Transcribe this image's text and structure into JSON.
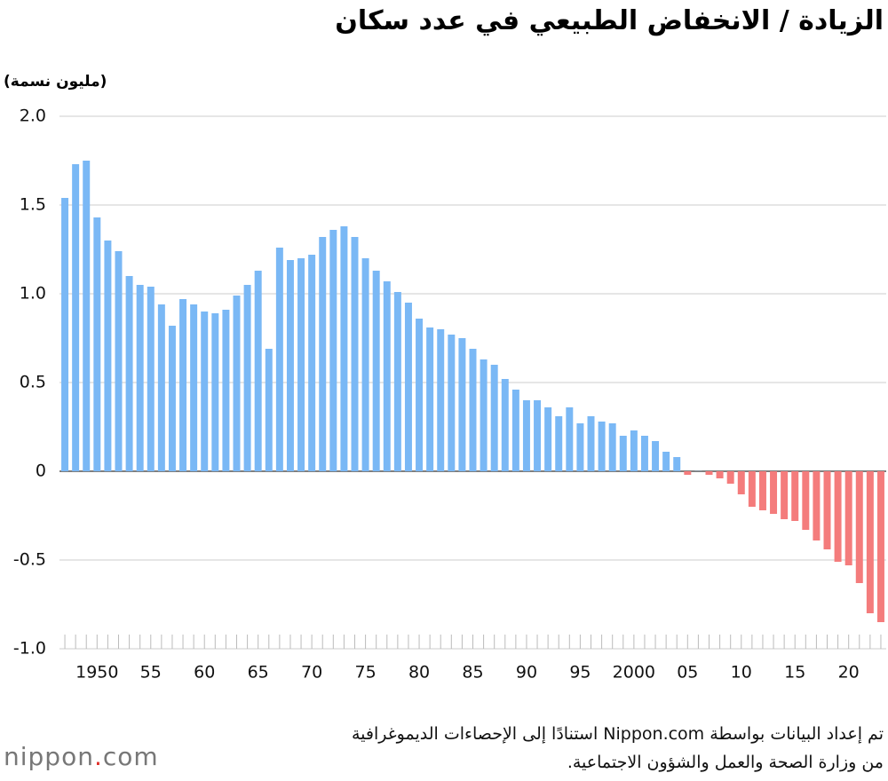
{
  "chart_data": {
    "type": "bar",
    "title": "الزيادة / الانخفاض الطبيعي في عدد سكان",
    "y_axis_label": "(مليون نسمة)",
    "source": [
      "تم إعداد البيانات بواسطة Nippon.com استنادًا إلى الإحصاءات الديموغرافية",
      "من وزارة الصحة والعمل والشؤون الاجتماعية."
    ],
    "logo": {
      "name": "nippon",
      "dot": ".",
      "suffix": "com"
    },
    "categories": [
      null,
      null,
      null,
      "1950",
      null,
      null,
      null,
      null,
      "55",
      null,
      null,
      null,
      null,
      "60",
      null,
      null,
      null,
      null,
      "65",
      null,
      null,
      null,
      null,
      "70",
      null,
      null,
      null,
      null,
      "75",
      null,
      null,
      null,
      null,
      "80",
      null,
      null,
      null,
      null,
      "85",
      null,
      null,
      null,
      null,
      "90",
      null,
      null,
      null,
      null,
      "95",
      null,
      null,
      null,
      null,
      "2000",
      null,
      null,
      null,
      null,
      "05",
      null,
      null,
      null,
      null,
      "10",
      null,
      null,
      null,
      null,
      "15",
      null,
      null,
      null,
      null,
      "20",
      null,
      null,
      null
    ],
    "values": [
      1.54,
      1.73,
      1.75,
      1.43,
      1.3,
      1.24,
      1.1,
      1.05,
      1.04,
      0.94,
      0.82,
      0.97,
      0.94,
      0.9,
      0.89,
      0.91,
      0.99,
      1.05,
      1.13,
      0.69,
      1.26,
      1.19,
      1.2,
      1.22,
      1.32,
      1.36,
      1.38,
      1.32,
      1.2,
      1.13,
      1.07,
      1.01,
      0.95,
      0.86,
      0.81,
      0.8,
      0.77,
      0.75,
      0.69,
      0.63,
      0.6,
      0.52,
      0.46,
      0.4,
      0.4,
      0.36,
      0.31,
      0.36,
      0.27,
      0.31,
      0.28,
      0.27,
      0.2,
      0.23,
      0.2,
      0.17,
      0.11,
      0.08,
      -0.02,
      0.001,
      -0.02,
      -0.04,
      -0.07,
      -0.13,
      -0.2,
      -0.22,
      -0.24,
      -0.27,
      -0.28,
      -0.33,
      -0.39,
      -0.44,
      -0.51,
      -0.53,
      -0.63,
      -0.8,
      -0.85
    ],
    "positive_color": "#7ab8f5",
    "negative_color": "#f47c7c",
    "ylim": [
      -1,
      2
    ],
    "yticks": [
      {
        "value": 2,
        "label": "2.0"
      },
      1.5,
      {
        "value": 1,
        "label": "1.0"
      },
      0.5,
      0,
      -0.5,
      {
        "value": -1,
        "label": "-1.0"
      }
    ],
    "grid": true
  }
}
